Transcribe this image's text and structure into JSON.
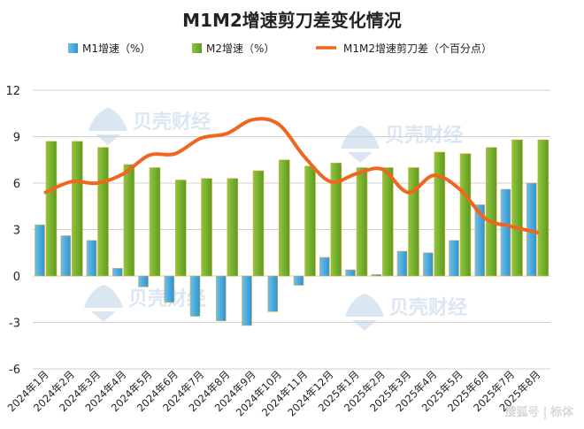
{
  "chart_data": {
    "type": "bar",
    "title": "M1M2增速剪刀差变化情况",
    "categories": [
      "2024年1月",
      "2024年2月",
      "2024年3月",
      "2024年4月",
      "2024年5月",
      "2024年6月",
      "2024年7月",
      "2024年8月",
      "2024年9月",
      "2024年10月",
      "2024年11月",
      "2024年12月",
      "2025年1月",
      "2025年2月",
      "2025年3月",
      "2025年4月",
      "2025年5月",
      "2025年6月",
      "2025年7月",
      "2025年8月"
    ],
    "series": [
      {
        "name": "M1增速（%）",
        "kind": "bar",
        "color": "#4BAAD8",
        "values": [
          3.3,
          2.6,
          2.3,
          0.5,
          -0.7,
          -1.7,
          -2.6,
          -2.9,
          -3.2,
          -2.3,
          -0.6,
          1.2,
          0.4,
          0.1,
          1.6,
          1.5,
          2.3,
          4.6,
          5.6,
          6.0
        ]
      },
      {
        "name": "M2增速（%）",
        "kind": "bar",
        "color": "#7DB22E",
        "values": [
          8.7,
          8.7,
          8.3,
          7.2,
          7.0,
          6.2,
          6.3,
          6.3,
          6.8,
          7.5,
          7.1,
          7.3,
          7.0,
          7.0,
          7.0,
          8.0,
          7.9,
          8.3,
          8.8,
          8.8
        ]
      },
      {
        "name": "M1M2增速剪刀差（个百分点）",
        "kind": "line",
        "color": "#F0661E",
        "values": [
          5.4,
          6.1,
          6.0,
          6.6,
          7.8,
          7.9,
          8.9,
          9.2,
          10.1,
          9.8,
          7.7,
          6.1,
          6.6,
          6.9,
          5.4,
          6.5,
          5.6,
          3.7,
          3.2,
          2.8
        ]
      }
    ],
    "yticks": [
      -6,
      -3,
      0,
      3,
      6,
      9,
      12
    ],
    "ylim": [
      -6,
      12
    ],
    "grid": true,
    "legend_position": "top"
  },
  "watermarks": {
    "brand": "贝壳财经",
    "source": "搜狐号 | 标体"
  }
}
